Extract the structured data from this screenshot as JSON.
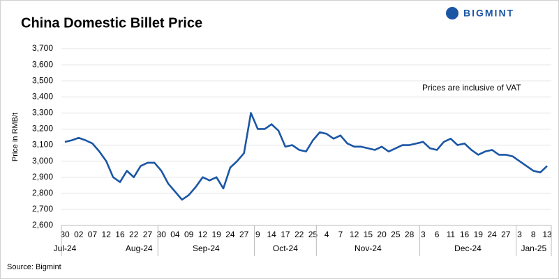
{
  "chart_data": {
    "type": "line",
    "title": "China Domestic Billet Price",
    "logo": "BIGMINT",
    "ylabel": "Price in RMB/t",
    "annotation": "Prices are inclusive of VAT",
    "source": "Source: Bigmint",
    "months": [
      "Jul-24",
      "Aug-24",
      "Sep-24",
      "Oct-24",
      "Nov-24",
      "Dec-24",
      "Jan-25"
    ],
    "categories": [
      "30",
      null,
      "02",
      null,
      "07",
      null,
      "12",
      null,
      "16",
      null,
      "22",
      null,
      "27",
      null,
      "30",
      null,
      "04",
      null,
      "09",
      null,
      "12",
      null,
      "19",
      null,
      "24",
      null,
      "27",
      null,
      "9",
      null,
      "14",
      null,
      "17",
      null,
      "22",
      null,
      "25",
      null,
      "4",
      null,
      "7",
      null,
      "12",
      null,
      "15",
      null,
      "20",
      null,
      "25",
      null,
      "28",
      null,
      "3",
      null,
      "6",
      null,
      "11",
      null,
      "16",
      null,
      "19",
      null,
      "24",
      null,
      "27",
      null,
      "3",
      null,
      "8",
      null,
      "13"
    ],
    "series": [
      {
        "name": "China Domestic Billet Price",
        "color": "#1b56a5",
        "values": [
          3120,
          3130,
          3145,
          3130,
          3110,
          3060,
          3000,
          2900,
          2870,
          2940,
          2900,
          2970,
          2990,
          2990,
          2940,
          2860,
          2810,
          2760,
          2790,
          2840,
          2900,
          2880,
          2900,
          2830,
          2960,
          3000,
          3050,
          3300,
          3200,
          3200,
          3230,
          3190,
          3090,
          3100,
          3070,
          3060,
          3130,
          3180,
          3170,
          3140,
          3160,
          3110,
          3090,
          3090,
          3080,
          3070,
          3090,
          3060,
          3080,
          3100,
          3100,
          3110,
          3120,
          3080,
          3070,
          3120,
          3140,
          3100,
          3110,
          3070,
          3040,
          3060,
          3070,
          3040,
          3040,
          3030,
          3000,
          2970,
          2940,
          2930,
          2970
        ]
      }
    ],
    "ylim": [
      2600,
      3700
    ],
    "yticks": [
      {
        "value": 2600,
        "label": "2,600"
      },
      {
        "value": 2700,
        "label": "2,700"
      },
      {
        "value": 2800,
        "label": "2,800"
      },
      {
        "value": 2900,
        "label": "2,900"
      },
      {
        "value": 3000,
        "label": "3,000"
      },
      {
        "value": 3100,
        "label": "3,100"
      },
      {
        "value": 3200,
        "label": "3,200"
      },
      {
        "value": 3300,
        "label": "3,300"
      },
      {
        "value": 3400,
        "label": "3,400"
      },
      {
        "value": 3500,
        "label": "3,500"
      },
      {
        "value": 3600,
        "label": "3,600"
      },
      {
        "value": 3700,
        "label": "3,700"
      }
    ],
    "grid": true
  }
}
